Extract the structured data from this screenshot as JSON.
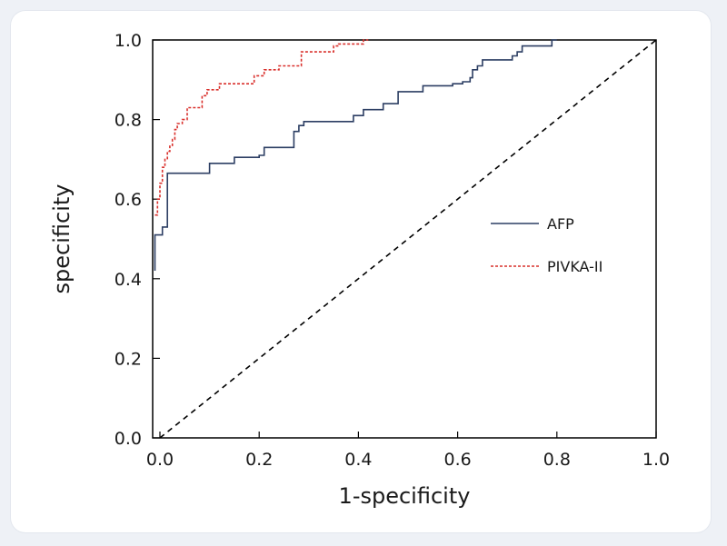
{
  "chart_data": {
    "type": "line",
    "title": "",
    "xlabel": "1-specificity",
    "ylabel": "specificity",
    "xlim": [
      0,
      1
    ],
    "ylim": [
      0,
      1
    ],
    "x_ticks": [
      "0.0",
      "0.2",
      "0.4",
      "0.6",
      "0.8",
      "1.0"
    ],
    "y_ticks": [
      "0.0",
      "0.2",
      "0.4",
      "0.6",
      "0.8",
      "1.0"
    ],
    "grid": false,
    "legend_position": "center-right",
    "reference_line": {
      "style": "dashed",
      "color": "#000000",
      "points": [
        [
          0,
          0
        ],
        [
          1,
          1
        ]
      ]
    },
    "series": [
      {
        "name": "AFP",
        "color": "#2c3e63",
        "style": "solid",
        "points": [
          [
            -0.01,
            0.42
          ],
          [
            -0.01,
            0.51
          ],
          [
            0.005,
            0.51
          ],
          [
            0.005,
            0.53
          ],
          [
            0.015,
            0.53
          ],
          [
            0.015,
            0.665
          ],
          [
            0.1,
            0.665
          ],
          [
            0.1,
            0.69
          ],
          [
            0.15,
            0.69
          ],
          [
            0.15,
            0.705
          ],
          [
            0.2,
            0.705
          ],
          [
            0.2,
            0.71
          ],
          [
            0.21,
            0.71
          ],
          [
            0.21,
            0.73
          ],
          [
            0.27,
            0.73
          ],
          [
            0.27,
            0.77
          ],
          [
            0.28,
            0.77
          ],
          [
            0.28,
            0.785
          ],
          [
            0.29,
            0.785
          ],
          [
            0.29,
            0.795
          ],
          [
            0.39,
            0.795
          ],
          [
            0.39,
            0.81
          ],
          [
            0.41,
            0.81
          ],
          [
            0.41,
            0.825
          ],
          [
            0.45,
            0.825
          ],
          [
            0.45,
            0.84
          ],
          [
            0.48,
            0.84
          ],
          [
            0.48,
            0.87
          ],
          [
            0.53,
            0.87
          ],
          [
            0.53,
            0.885
          ],
          [
            0.59,
            0.885
          ],
          [
            0.59,
            0.89
          ],
          [
            0.61,
            0.89
          ],
          [
            0.61,
            0.895
          ],
          [
            0.625,
            0.895
          ],
          [
            0.625,
            0.905
          ],
          [
            0.63,
            0.905
          ],
          [
            0.63,
            0.925
          ],
          [
            0.64,
            0.925
          ],
          [
            0.64,
            0.935
          ],
          [
            0.65,
            0.935
          ],
          [
            0.65,
            0.95
          ],
          [
            0.71,
            0.95
          ],
          [
            0.71,
            0.96
          ],
          [
            0.72,
            0.96
          ],
          [
            0.72,
            0.97
          ],
          [
            0.73,
            0.97
          ],
          [
            0.73,
            0.985
          ],
          [
            0.79,
            0.985
          ],
          [
            0.79,
            1.0
          ],
          [
            0.8,
            1.0
          ]
        ]
      },
      {
        "name": "PIVKA-II",
        "color": "#d9302c",
        "style": "dashed",
        "points": [
          [
            -0.01,
            0.56
          ],
          [
            -0.005,
            0.56
          ],
          [
            -0.005,
            0.6
          ],
          [
            0.0,
            0.6
          ],
          [
            0.0,
            0.64
          ],
          [
            0.005,
            0.64
          ],
          [
            0.005,
            0.68
          ],
          [
            0.01,
            0.68
          ],
          [
            0.01,
            0.7
          ],
          [
            0.015,
            0.7
          ],
          [
            0.015,
            0.72
          ],
          [
            0.02,
            0.72
          ],
          [
            0.02,
            0.735
          ],
          [
            0.025,
            0.735
          ],
          [
            0.025,
            0.75
          ],
          [
            0.03,
            0.75
          ],
          [
            0.03,
            0.775
          ],
          [
            0.035,
            0.775
          ],
          [
            0.035,
            0.79
          ],
          [
            0.045,
            0.79
          ],
          [
            0.045,
            0.8
          ],
          [
            0.055,
            0.8
          ],
          [
            0.055,
            0.83
          ],
          [
            0.085,
            0.83
          ],
          [
            0.085,
            0.86
          ],
          [
            0.095,
            0.86
          ],
          [
            0.095,
            0.875
          ],
          [
            0.12,
            0.875
          ],
          [
            0.12,
            0.89
          ],
          [
            0.19,
            0.89
          ],
          [
            0.19,
            0.91
          ],
          [
            0.21,
            0.91
          ],
          [
            0.21,
            0.925
          ],
          [
            0.24,
            0.925
          ],
          [
            0.24,
            0.935
          ],
          [
            0.285,
            0.935
          ],
          [
            0.285,
            0.97
          ],
          [
            0.35,
            0.97
          ],
          [
            0.35,
            0.985
          ],
          [
            0.36,
            0.985
          ],
          [
            0.36,
            0.99
          ],
          [
            0.41,
            0.99
          ],
          [
            0.41,
            1.0
          ],
          [
            0.42,
            1.0
          ]
        ]
      }
    ]
  }
}
